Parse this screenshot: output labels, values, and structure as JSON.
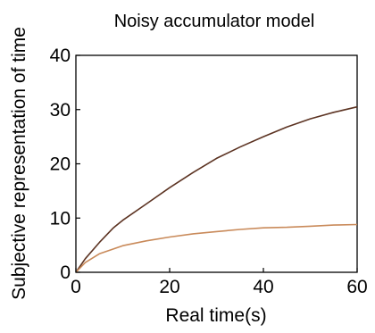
{
  "chart_data": {
    "type": "line",
    "title": "Noisy accumulator model",
    "xlabel": "Real time(s)",
    "ylabel": "Subjective representation of time",
    "xlim": [
      0,
      60
    ],
    "ylim": [
      0,
      40
    ],
    "xticks": [
      0,
      20,
      40,
      60
    ],
    "yticks": [
      0,
      10,
      20,
      30,
      40
    ],
    "grid": false,
    "legend": "none",
    "series": [
      {
        "color": "#5c3322",
        "x": [
          0,
          2,
          5,
          8,
          10,
          15,
          20,
          25,
          30,
          35,
          40,
          45,
          50,
          55,
          60
        ],
        "y": [
          0,
          2.5,
          5.5,
          8.2,
          9.6,
          12.6,
          15.6,
          18.4,
          21.0,
          23.1,
          25.0,
          26.8,
          28.3,
          29.5,
          30.5
        ]
      },
      {
        "color": "#c98a5a",
        "x": [
          0,
          2,
          5,
          8,
          10,
          15,
          20,
          25,
          30,
          35,
          40,
          45,
          50,
          55,
          60
        ],
        "y": [
          0,
          1.8,
          3.4,
          4.3,
          4.9,
          5.8,
          6.5,
          7.1,
          7.5,
          7.9,
          8.2,
          8.3,
          8.5,
          8.7,
          8.8
        ]
      }
    ]
  }
}
